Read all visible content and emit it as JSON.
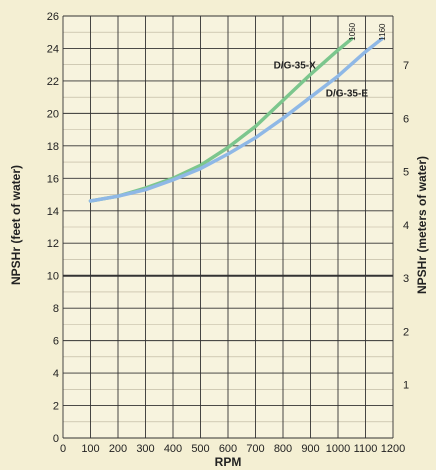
{
  "chart_data": {
    "type": "line",
    "xlabel": "RPM",
    "ylabel": "NPSHr (feet of water)",
    "ylabel_right": "NPSHr (meters of water)",
    "xlim": [
      0,
      1200
    ],
    "ylim": [
      0,
      26
    ],
    "x_ticks": [
      0,
      100,
      200,
      300,
      400,
      500,
      600,
      700,
      800,
      900,
      1000,
      1100,
      1200
    ],
    "y_ticks": [
      0,
      2,
      4,
      6,
      8,
      10,
      12,
      14,
      16,
      18,
      20,
      22,
      24,
      26
    ],
    "y_right_ticks": [
      1,
      2,
      3,
      4,
      5,
      6,
      7
    ],
    "grid": true,
    "series": [
      {
        "name": "D/G-35-X",
        "end_rpm": "1050",
        "color": "#7cc68d",
        "x": [
          100,
          200,
          300,
          400,
          500,
          600,
          700,
          800,
          900,
          1000,
          1050
        ],
        "y": [
          14.6,
          14.9,
          15.4,
          16.0,
          16.8,
          17.9,
          19.2,
          20.8,
          22.4,
          23.9,
          24.6
        ]
      },
      {
        "name": "D/G-35-E",
        "end_rpm": "1160",
        "color": "#8fb8e6",
        "x": [
          100,
          200,
          300,
          400,
          500,
          600,
          700,
          800,
          900,
          1000,
          1100,
          1160
        ],
        "y": [
          14.6,
          14.9,
          15.3,
          15.9,
          16.6,
          17.5,
          18.5,
          19.7,
          21.0,
          22.3,
          23.8,
          24.6
        ]
      }
    ]
  }
}
